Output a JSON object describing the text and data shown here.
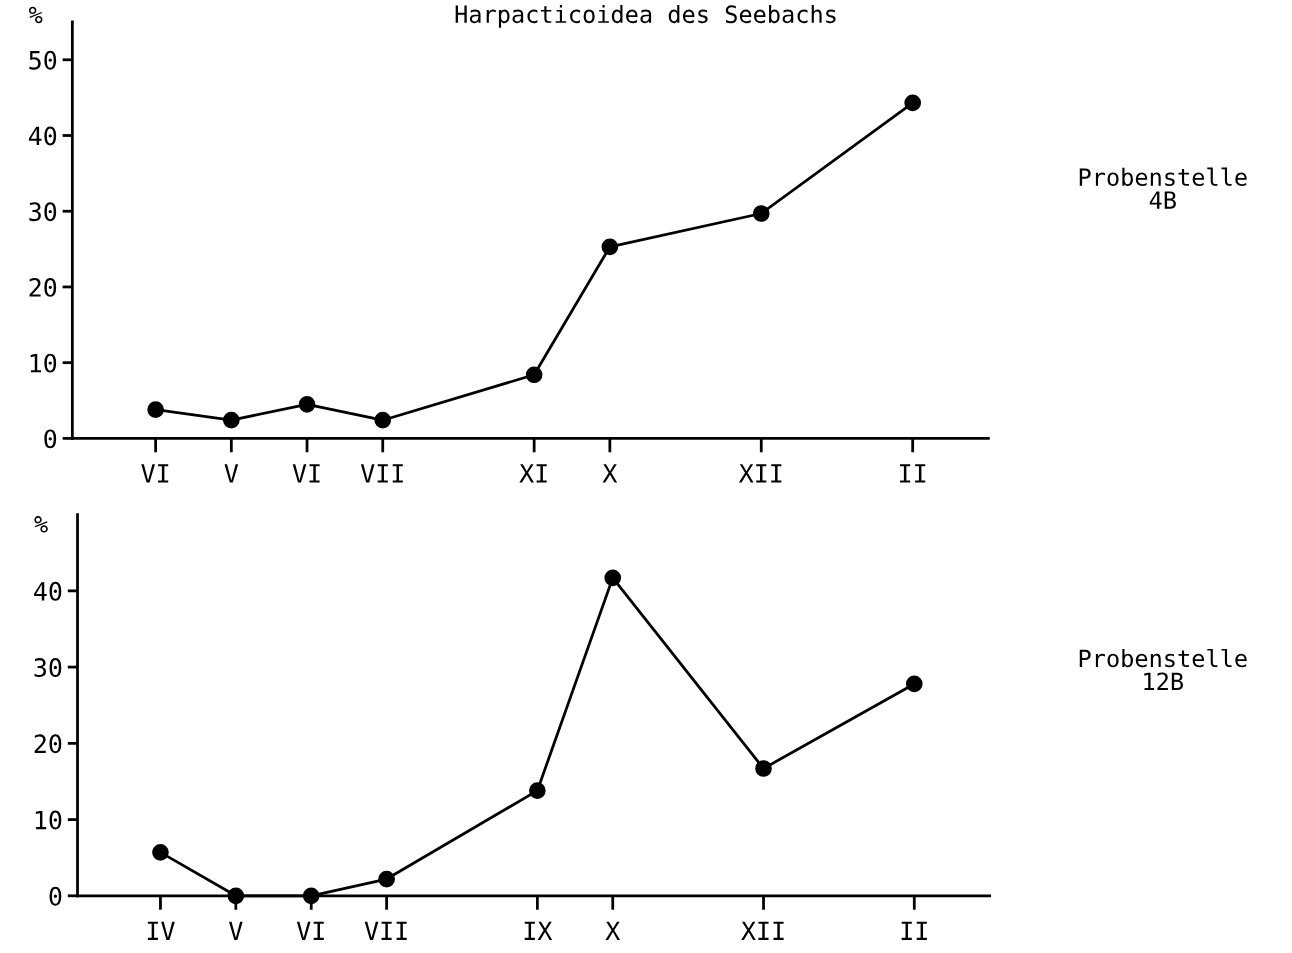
{
  "chart_data": [
    {
      "type": "line",
      "title": "Harpacticoidea des Seebachs",
      "ylabel": "%",
      "categories": [
        "VI",
        "V",
        "VI",
        "VII",
        null,
        "XI",
        "X",
        null,
        "XII",
        null,
        "II"
      ],
      "ylim": [
        0,
        55
      ],
      "yticks": [
        0,
        10,
        20,
        30,
        40,
        50
      ],
      "series": [
        {
          "color": "#000000",
          "values": [
            3.8,
            2.4,
            4.5,
            2.4,
            null,
            8.4,
            25.3,
            null,
            29.7,
            null,
            44.3
          ]
        }
      ],
      "marker": "circle",
      "line_style": "solid",
      "grid": false,
      "legend": false,
      "annotations": [
        "Probenstelle\n4B"
      ]
    },
    {
      "type": "line",
      "ylabel": "%",
      "categories": [
        "IV",
        "V",
        "VI",
        "VII",
        null,
        "IX",
        "X",
        null,
        "XII",
        null,
        "II"
      ],
      "ylim": [
        0,
        50
      ],
      "yticks": [
        0,
        10,
        20,
        30,
        40
      ],
      "series": [
        {
          "color": "#000000",
          "values": [
            5.7,
            0,
            0,
            2.2,
            null,
            13.8,
            41.7,
            null,
            16.7,
            null,
            27.8
          ]
        }
      ],
      "marker": "circle",
      "line_style": "solid",
      "grid": false,
      "legend": false,
      "annotations": [
        "Probenstelle\n12B"
      ]
    }
  ]
}
